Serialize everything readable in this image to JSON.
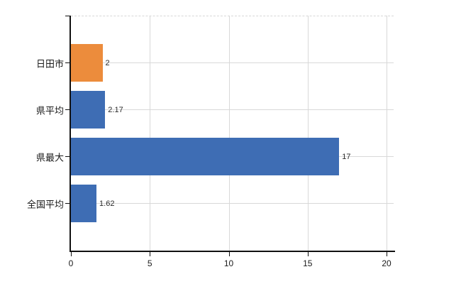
{
  "chart_data": {
    "type": "bar",
    "orientation": "horizontal",
    "title": "",
    "categories": [
      "日田市",
      "県平均",
      "県最大",
      "全国平均"
    ],
    "values": [
      2,
      2.17,
      17,
      1.62
    ],
    "value_labels": [
      "2",
      "2.17",
      "17",
      "1.62"
    ],
    "series_colors": [
      "#EC8C3C",
      "#3E6DB4",
      "#3E6DB4",
      "#3E6DB4"
    ],
    "x_ticks": [
      "0",
      "5",
      "10",
      "15",
      "20"
    ],
    "x_tick_values": [
      0,
      5,
      10,
      15,
      20
    ],
    "xlim": [
      0,
      20.45
    ],
    "ylabel": "",
    "xlabel": "",
    "grid": true,
    "legend_position": "none",
    "colors": {
      "axis": "#111111",
      "gridline": "#d8d8d8",
      "text": "#1a1a1a",
      "value_text": "#2b2b2b",
      "background": "#ffffff"
    }
  }
}
